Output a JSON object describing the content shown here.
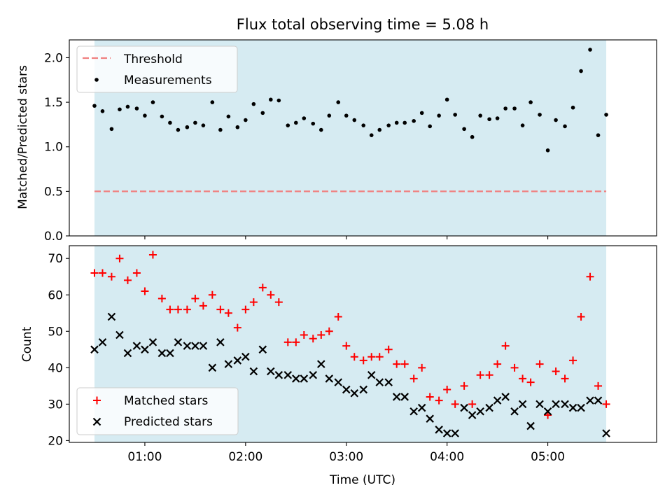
{
  "title": "Flux total observing time = 5.08 h",
  "chart_data": [
    {
      "type": "scatter",
      "name": "ratio-panel",
      "ylabel": "Matched/Predicted stars",
      "xlabel": "",
      "xlim": [
        0.25,
        6.08
      ],
      "ylim": [
        0.0,
        2.2
      ],
      "yticks": [
        0.0,
        0.5,
        1.0,
        1.5,
        2.0
      ],
      "ytick_labels": [
        "0.0",
        "0.5",
        "1.0",
        "1.5",
        "2.0"
      ],
      "observing_window": [
        0.5,
        5.58
      ],
      "observing_window_color": "#add8e6",
      "legend_position": "upper-left",
      "threshold": {
        "label": "Threshold",
        "value": 0.5,
        "color": "#f08080",
        "style": "dashed"
      },
      "series": [
        {
          "name": "Measurements",
          "marker": "dot",
          "color": "#000000",
          "x": [
            0.5,
            0.58,
            0.67,
            0.75,
            0.83,
            0.92,
            1.0,
            1.08,
            1.17,
            1.25,
            1.33,
            1.42,
            1.5,
            1.58,
            1.67,
            1.75,
            1.83,
            1.92,
            2.0,
            2.08,
            2.17,
            2.25,
            2.33,
            2.42,
            2.5,
            2.58,
            2.67,
            2.75,
            2.83,
            2.92,
            3.0,
            3.08,
            3.17,
            3.25,
            3.33,
            3.42,
            3.5,
            3.58,
            3.67,
            3.75,
            3.83,
            3.92,
            4.0,
            4.08,
            4.17,
            4.25,
            4.33,
            4.42,
            4.5,
            4.58,
            4.67,
            4.75,
            4.83,
            4.92,
            5.0,
            5.08,
            5.17,
            5.25,
            5.33,
            5.42,
            5.5,
            5.58
          ],
          "y": [
            1.46,
            1.4,
            1.2,
            1.42,
            1.45,
            1.43,
            1.35,
            1.5,
            1.34,
            1.27,
            1.19,
            1.22,
            1.27,
            1.24,
            1.5,
            1.19,
            1.34,
            1.22,
            1.3,
            1.48,
            1.38,
            1.53,
            1.52,
            1.24,
            1.27,
            1.32,
            1.26,
            1.19,
            1.35,
            1.5,
            1.35,
            1.3,
            1.24,
            1.13,
            1.19,
            1.24,
            1.27,
            1.27,
            1.29,
            1.38,
            1.23,
            1.35,
            1.53,
            1.36,
            1.2,
            1.11,
            1.35,
            1.31,
            1.32,
            1.43,
            1.43,
            1.24,
            1.5,
            1.36,
            0.96,
            1.3,
            1.23,
            1.44,
            1.85,
            2.09,
            1.13,
            1.36
          ]
        }
      ]
    },
    {
      "type": "scatter",
      "name": "count-panel",
      "ylabel": "Count",
      "xlabel": "Time (UTC)",
      "xlim": [
        0.25,
        6.08
      ],
      "ylim": [
        19.5,
        73.5
      ],
      "yticks": [
        20,
        30,
        40,
        50,
        60,
        70
      ],
      "ytick_labels": [
        "20",
        "30",
        "40",
        "50",
        "60",
        "70"
      ],
      "xticks": [
        1,
        2,
        3,
        4,
        5
      ],
      "xtick_labels": [
        "01:00",
        "02:00",
        "03:00",
        "04:00",
        "05:00"
      ],
      "observing_window": [
        0.5,
        5.58
      ],
      "observing_window_color": "#add8e6",
      "legend_position": "lower-left",
      "series": [
        {
          "name": "Matched stars",
          "marker": "plus",
          "color": "#ff0000",
          "x": [
            0.5,
            0.58,
            0.67,
            0.75,
            0.83,
            0.92,
            1.0,
            1.08,
            1.17,
            1.25,
            1.33,
            1.42,
            1.5,
            1.58,
            1.67,
            1.75,
            1.83,
            1.92,
            2.0,
            2.08,
            2.17,
            2.25,
            2.33,
            2.42,
            2.5,
            2.58,
            2.67,
            2.75,
            2.83,
            2.92,
            3.0,
            3.08,
            3.17,
            3.25,
            3.33,
            3.42,
            3.5,
            3.58,
            3.67,
            3.75,
            3.83,
            3.92,
            4.0,
            4.08,
            4.17,
            4.25,
            4.33,
            4.42,
            4.5,
            4.58,
            4.67,
            4.75,
            4.83,
            4.92,
            5.0,
            5.08,
            5.17,
            5.25,
            5.33,
            5.42,
            5.5,
            5.58
          ],
          "y": [
            66,
            66,
            65,
            70,
            64,
            66,
            61,
            71,
            59,
            56,
            56,
            56,
            59,
            57,
            60,
            56,
            55,
            51,
            56,
            58,
            62,
            60,
            58,
            47,
            47,
            49,
            48,
            49,
            50,
            54,
            46,
            43,
            42,
            43,
            43,
            45,
            41,
            41,
            37,
            40,
            32,
            31,
            34,
            30,
            35,
            30,
            38,
            38,
            41,
            46,
            40,
            37,
            36,
            41,
            27,
            39,
            37,
            42,
            54,
            65,
            35,
            30
          ]
        },
        {
          "name": "Predicted stars",
          "marker": "x",
          "color": "#000000",
          "x": [
            0.5,
            0.58,
            0.67,
            0.75,
            0.83,
            0.92,
            1.0,
            1.08,
            1.17,
            1.25,
            1.33,
            1.42,
            1.5,
            1.58,
            1.67,
            1.75,
            1.83,
            1.92,
            2.0,
            2.08,
            2.17,
            2.25,
            2.33,
            2.42,
            2.5,
            2.58,
            2.67,
            2.75,
            2.83,
            2.92,
            3.0,
            3.08,
            3.17,
            3.25,
            3.33,
            3.42,
            3.5,
            3.58,
            3.67,
            3.75,
            3.83,
            3.92,
            4.0,
            4.08,
            4.17,
            4.25,
            4.33,
            4.42,
            4.5,
            4.58,
            4.67,
            4.75,
            4.83,
            4.92,
            5.0,
            5.08,
            5.17,
            5.25,
            5.33,
            5.42,
            5.5,
            5.58
          ],
          "y": [
            45,
            47,
            54,
            49,
            44,
            46,
            45,
            47,
            44,
            44,
            47,
            46,
            46,
            46,
            40,
            47,
            41,
            42,
            43,
            39,
            45,
            39,
            38,
            38,
            37,
            37,
            38,
            41,
            37,
            36,
            34,
            33,
            34,
            38,
            36,
            36,
            32,
            32,
            28,
            29,
            26,
            23,
            22,
            22,
            29,
            27,
            28,
            29,
            31,
            32,
            28,
            30,
            24,
            30,
            28,
            30,
            30,
            29,
            29,
            31,
            31,
            22
          ]
        }
      ]
    }
  ]
}
